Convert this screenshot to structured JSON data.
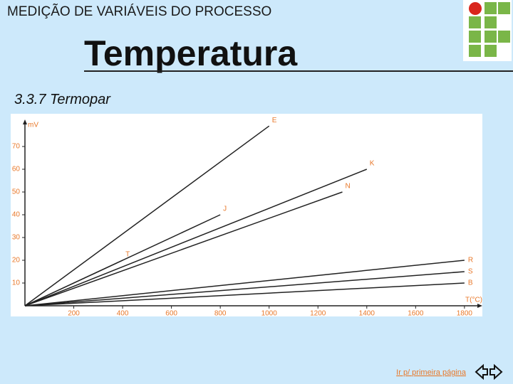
{
  "header": {
    "subtitle": "MEDIÇÃO DE VARIÁVEIS DO PROCESSO",
    "title": "Temperatura",
    "section": "3.3.7 Termopar"
  },
  "footer": {
    "link": "Ir p/ primeira página"
  },
  "chart_data": {
    "type": "line",
    "x_label": "T(°C)",
    "y_label": "mV",
    "xlim": [
      0,
      1850
    ],
    "ylim": [
      0,
      80
    ],
    "xticks": [
      200,
      400,
      600,
      800,
      1000,
      1200,
      1400,
      1600,
      1800
    ],
    "yticks": [
      10,
      20,
      30,
      40,
      50,
      60,
      70
    ],
    "series": [
      {
        "name": "E",
        "color": "#222222",
        "x": [
          0,
          1000
        ],
        "values": [
          0,
          79
        ]
      },
      {
        "name": "K",
        "color": "#222222",
        "x": [
          0,
          1400
        ],
        "values": [
          0,
          60
        ]
      },
      {
        "name": "N",
        "color": "#222222",
        "x": [
          0,
          1300
        ],
        "values": [
          0,
          50
        ]
      },
      {
        "name": "J",
        "color": "#222222",
        "x": [
          0,
          800
        ],
        "values": [
          0,
          40
        ]
      },
      {
        "name": "T",
        "color": "#222222",
        "x": [
          0,
          400
        ],
        "values": [
          0,
          20
        ]
      },
      {
        "name": "R",
        "color": "#222222",
        "x": [
          0,
          1800
        ],
        "values": [
          0,
          20
        ]
      },
      {
        "name": "S",
        "color": "#222222",
        "x": [
          0,
          1800
        ],
        "values": [
          0,
          15
        ]
      },
      {
        "name": "B",
        "color": "#222222",
        "x": [
          0,
          1800
        ],
        "values": [
          0,
          10
        ]
      }
    ]
  }
}
